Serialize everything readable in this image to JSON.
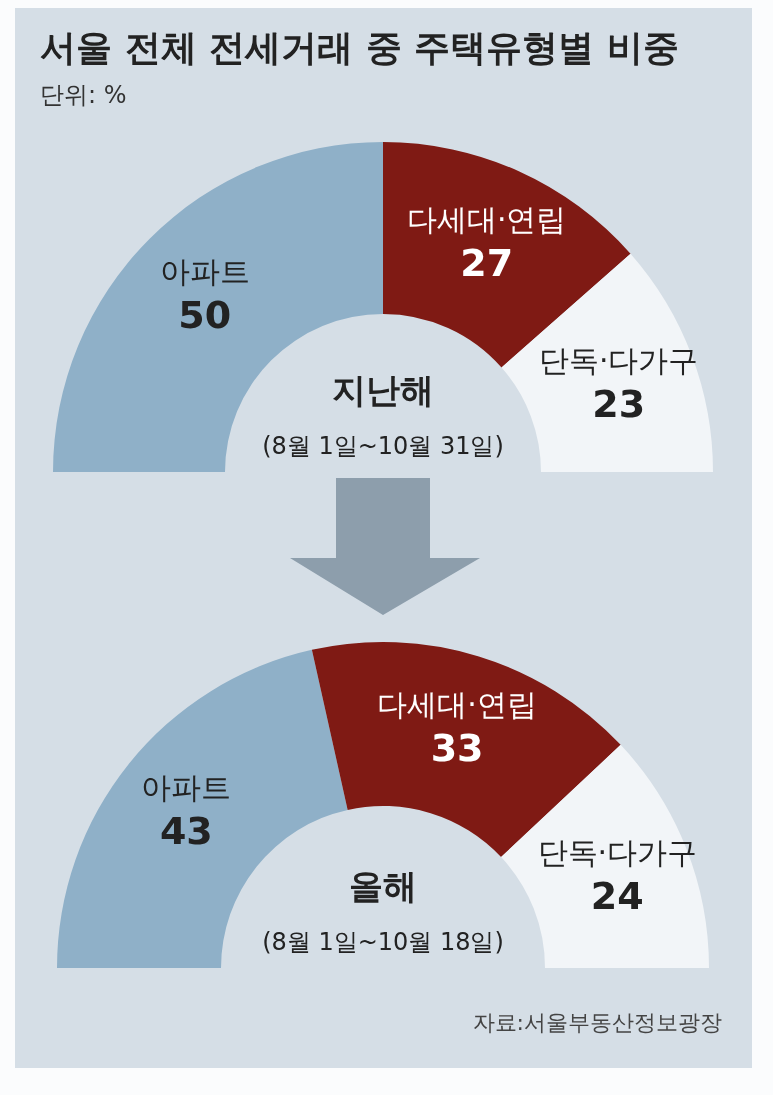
{
  "chart_data": [
    {
      "type": "donut",
      "title": "서울 전체 전세거래 중 주택유형별 비중",
      "subtitle": "단위: %",
      "categories": [
        "아파트",
        "다세대·연립",
        "단독·다가구"
      ],
      "values": [
        50,
        27,
        23
      ],
      "colors": [
        "#8fb0c8",
        "#7f1a14",
        "#f2f5f8"
      ],
      "data_labels": true,
      "annotations": [
        "지난해",
        "(8월 1일~10월 31일)"
      ]
    },
    {
      "type": "donut",
      "categories": [
        "아파트",
        "다세대·연립",
        "단독·다가구"
      ],
      "values": [
        43,
        33,
        24
      ],
      "colors": [
        "#8fb0c8",
        "#7f1a14",
        "#f2f5f8"
      ],
      "data_labels": true,
      "annotations": [
        "올해",
        "(8월 1일~10월 18일)",
        "자료:서울부동산정보광장"
      ]
    }
  ]
}
